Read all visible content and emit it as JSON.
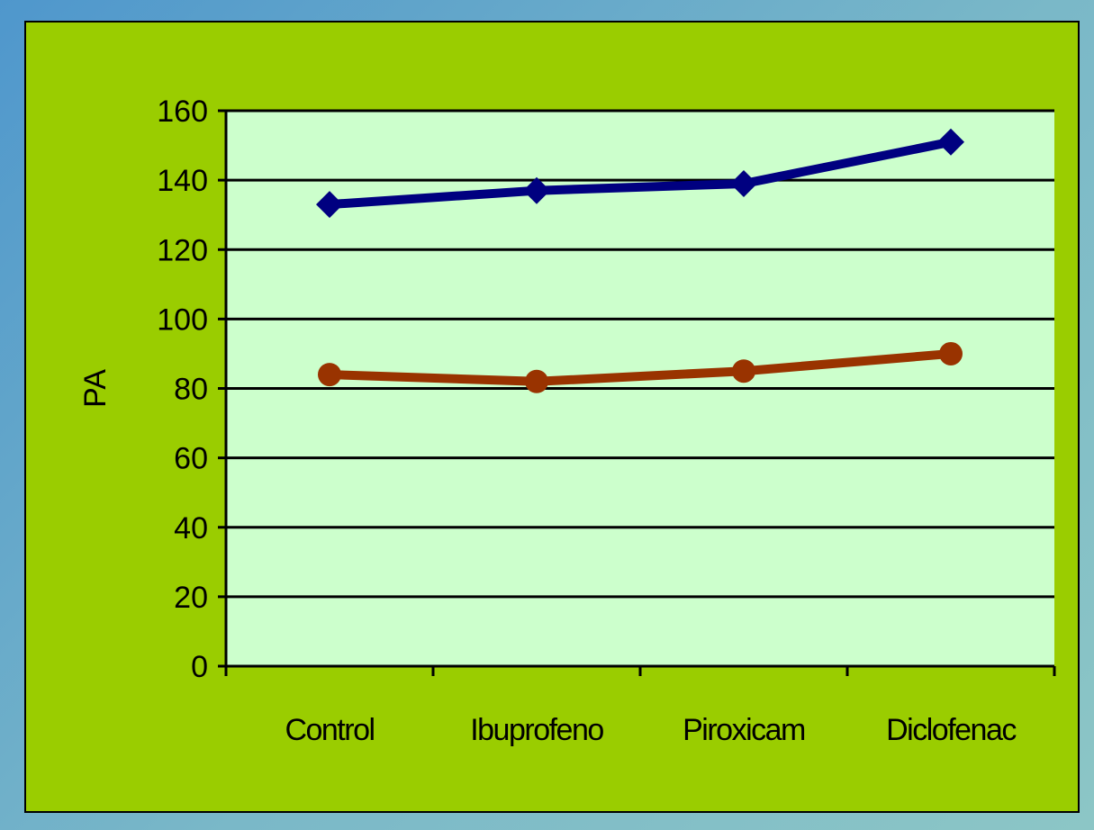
{
  "colors": {
    "chart_background": "#9acd00",
    "plot_background": "#ccffcc",
    "gridline": "#000000",
    "series_1": "#000080",
    "series_2": "#993300"
  },
  "chart_data": {
    "type": "line",
    "categories": [
      "Control",
      "Ibuprofeno",
      "Piroxicam",
      "Diclofenac"
    ],
    "series": [
      {
        "values": [
          133,
          137,
          139,
          151
        ],
        "marker": "diamond",
        "color": "#000080"
      },
      {
        "values": [
          84,
          82,
          85,
          90
        ],
        "marker": "circle",
        "color": "#993300"
      }
    ],
    "title": "",
    "xlabel": "",
    "ylabel": "PA",
    "ylim": [
      0,
      160
    ],
    "yticks": [
      0,
      20,
      40,
      60,
      80,
      100,
      120,
      140,
      160
    ],
    "grid": true,
    "legend": "none"
  }
}
